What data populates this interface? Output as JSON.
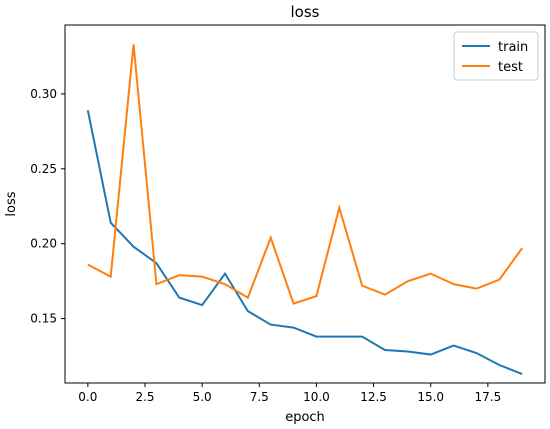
{
  "chart_data": {
    "type": "line",
    "title": "loss",
    "xlabel": "epoch",
    "ylabel": "loss",
    "xlim": [
      -1.0,
      20.0
    ],
    "ylim": [
      0.107,
      0.346
    ],
    "grid": false,
    "legend_position": "top-right",
    "xticks": [
      0.0,
      2.5,
      5.0,
      7.5,
      10.0,
      12.5,
      15.0,
      17.5
    ],
    "xtick_labels": [
      "0.0",
      "2.5",
      "5.0",
      "7.5",
      "10.0",
      "12.5",
      "15.0",
      "17.5"
    ],
    "yticks": [
      0.15,
      0.2,
      0.25,
      0.3
    ],
    "ytick_labels": [
      "0.15",
      "0.20",
      "0.25",
      "0.30"
    ],
    "x": [
      0,
      1,
      2,
      3,
      4,
      5,
      6,
      7,
      8,
      9,
      10,
      11,
      12,
      13,
      14,
      15,
      16,
      17,
      18,
      19
    ],
    "series": [
      {
        "name": "train",
        "color": "#1f77b4",
        "values": [
          0.289,
          0.214,
          0.198,
          0.187,
          0.164,
          0.159,
          0.18,
          0.155,
          0.146,
          0.144,
          0.138,
          0.138,
          0.138,
          0.129,
          0.128,
          0.126,
          0.132,
          0.127,
          0.119,
          0.113
        ]
      },
      {
        "name": "test",
        "color": "#ff7f0e",
        "values": [
          0.186,
          0.178,
          0.333,
          0.173,
          0.179,
          0.178,
          0.173,
          0.164,
          0.204,
          0.16,
          0.165,
          0.224,
          0.172,
          0.166,
          0.175,
          0.18,
          0.173,
          0.17,
          0.176,
          0.197
        ]
      }
    ]
  }
}
